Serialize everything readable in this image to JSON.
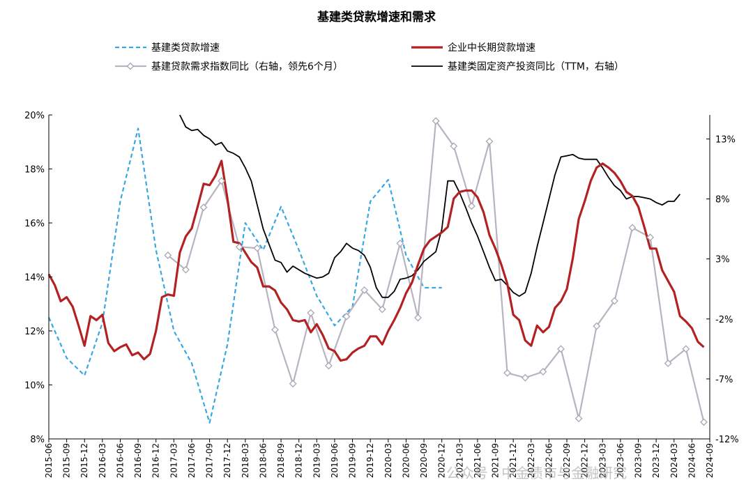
{
  "chart_data": {
    "type": "line",
    "title": "基建类贷款增速和需求",
    "watermark": "公众号 · 中金债市与金融研究",
    "left_axis": {
      "min": 8,
      "max": 20,
      "ticks": [
        "20%",
        "18%",
        "16%",
        "14%",
        "12%",
        "10%",
        "8%"
      ],
      "tick_values": [
        20,
        18,
        16,
        14,
        12,
        10,
        8
      ]
    },
    "right_axis": {
      "min": -12,
      "max": 15,
      "ticks": [
        "13%",
        "8%",
        "3%",
        "-2%",
        "-7%",
        "-12%"
      ],
      "tick_values": [
        13,
        8,
        3,
        -2,
        -7,
        -12
      ]
    },
    "x_labels": [
      "2015-06",
      "2015-09",
      "2015-12",
      "2016-03",
      "2016-06",
      "2016-09",
      "2016-12",
      "2017-03",
      "2017-06",
      "2017-09",
      "2017-12",
      "2018-03",
      "2018-06",
      "2018-09",
      "2018-12",
      "2019-03",
      "2019-06",
      "2019-09",
      "2019-12",
      "2020-03",
      "2020-06",
      "2020-09",
      "2020-12",
      "2021-03",
      "2021-06",
      "2021-09",
      "2021-12",
      "2022-03",
      "2022-06",
      "2022-09",
      "2022-12",
      "2023-03",
      "2023-06",
      "2023-09",
      "2023-12",
      "2024-03",
      "2024-06",
      "2024-09"
    ],
    "legend": {
      "placement": "top",
      "columns": 2
    },
    "series": [
      {
        "name": "基建类贷款增速",
        "axis": "left",
        "style": "dashed",
        "color": "#39a7e0",
        "width": 2.2,
        "marker": "none",
        "points": [
          [
            0,
            12.5
          ],
          [
            3,
            11.0
          ],
          [
            6,
            10.35
          ],
          [
            9,
            12.3
          ],
          [
            12,
            16.8
          ],
          [
            15,
            19.5
          ],
          [
            18,
            15.0
          ],
          [
            21,
            12.0
          ],
          [
            24,
            10.8
          ],
          [
            27,
            8.6
          ],
          [
            30,
            11.5
          ],
          [
            33,
            16.0
          ],
          [
            36,
            15.0
          ],
          [
            39,
            16.6
          ],
          [
            42,
            15.0
          ],
          [
            45,
            13.3
          ],
          [
            48,
            12.2
          ],
          [
            51,
            12.9
          ],
          [
            54,
            16.8
          ],
          [
            57,
            17.6
          ],
          [
            60,
            14.8
          ],
          [
            63,
            13.6
          ],
          [
            66,
            13.6
          ]
        ]
      },
      {
        "name": "企业中长期贷款增速",
        "axis": "left",
        "style": "solid",
        "color": "#b22222",
        "width": 3.2,
        "marker": "none",
        "points": [
          [
            0,
            14.1
          ],
          [
            1,
            13.7
          ],
          [
            2,
            13.1
          ],
          [
            3,
            13.25
          ],
          [
            4,
            12.9
          ],
          [
            5,
            12.2
          ],
          [
            6,
            11.45
          ],
          [
            7,
            12.55
          ],
          [
            8,
            12.4
          ],
          [
            9,
            12.6
          ],
          [
            10,
            11.55
          ],
          [
            11,
            11.25
          ],
          [
            12,
            11.4
          ],
          [
            13,
            11.5
          ],
          [
            14,
            11.1
          ],
          [
            15,
            11.2
          ],
          [
            16,
            10.95
          ],
          [
            17,
            11.15
          ],
          [
            18,
            12.0
          ],
          [
            19,
            13.25
          ],
          [
            20,
            13.35
          ],
          [
            21,
            13.3
          ],
          [
            22,
            14.9
          ],
          [
            23,
            15.5
          ],
          [
            24,
            15.8
          ],
          [
            25,
            16.6
          ],
          [
            26,
            17.45
          ],
          [
            27,
            17.4
          ],
          [
            28,
            17.75
          ],
          [
            29,
            18.3
          ],
          [
            30,
            16.9
          ],
          [
            31,
            15.3
          ],
          [
            32,
            15.25
          ],
          [
            33,
            14.9
          ],
          [
            34,
            14.55
          ],
          [
            35,
            14.35
          ],
          [
            36,
            13.65
          ],
          [
            37,
            13.65
          ],
          [
            38,
            13.5
          ],
          [
            39,
            13.05
          ],
          [
            40,
            12.8
          ],
          [
            41,
            12.4
          ],
          [
            42,
            12.35
          ],
          [
            43,
            12.4
          ],
          [
            44,
            11.95
          ],
          [
            45,
            12.25
          ],
          [
            46,
            11.85
          ],
          [
            47,
            11.35
          ],
          [
            48,
            11.25
          ],
          [
            49,
            10.9
          ],
          [
            50,
            10.95
          ],
          [
            51,
            11.2
          ],
          [
            52,
            11.35
          ],
          [
            53,
            11.45
          ],
          [
            54,
            11.8
          ],
          [
            55,
            11.8
          ],
          [
            56,
            11.5
          ],
          [
            57,
            12.0
          ],
          [
            58,
            12.4
          ],
          [
            59,
            12.85
          ],
          [
            60,
            13.4
          ],
          [
            61,
            13.8
          ],
          [
            62,
            14.45
          ],
          [
            63,
            15.05
          ],
          [
            64,
            15.35
          ],
          [
            65,
            15.5
          ],
          [
            66,
            15.65
          ],
          [
            67,
            15.85
          ],
          [
            68,
            16.9
          ],
          [
            69,
            17.15
          ],
          [
            70,
            17.2
          ],
          [
            71,
            17.2
          ],
          [
            72,
            16.95
          ],
          [
            73,
            16.4
          ],
          [
            74,
            15.55
          ],
          [
            75,
            15.05
          ],
          [
            76,
            14.45
          ],
          [
            77,
            13.75
          ],
          [
            78,
            12.6
          ],
          [
            79,
            12.4
          ],
          [
            80,
            11.65
          ],
          [
            81,
            11.45
          ],
          [
            82,
            12.2
          ],
          [
            83,
            11.95
          ],
          [
            84,
            12.15
          ],
          [
            85,
            12.85
          ],
          [
            86,
            13.1
          ],
          [
            87,
            13.55
          ],
          [
            88,
            14.7
          ],
          [
            89,
            16.15
          ],
          [
            90,
            16.8
          ],
          [
            91,
            17.55
          ],
          [
            92,
            18.05
          ],
          [
            93,
            18.2
          ],
          [
            94,
            18.05
          ],
          [
            95,
            17.85
          ],
          [
            96,
            17.55
          ],
          [
            97,
            17.15
          ],
          [
            98,
            17.0
          ],
          [
            99,
            16.6
          ],
          [
            100,
            15.85
          ],
          [
            101,
            15.05
          ],
          [
            102,
            15.05
          ],
          [
            103,
            14.25
          ],
          [
            104,
            13.85
          ],
          [
            105,
            13.45
          ],
          [
            106,
            12.55
          ],
          [
            107,
            12.35
          ],
          [
            108,
            12.1
          ],
          [
            109,
            11.6
          ],
          [
            110,
            11.4
          ]
        ]
      },
      {
        "name": "基建贷款需求指数同比（右轴，领先6个月）",
        "axis": "right",
        "style": "solid",
        "color": "#b7b3c0",
        "width": 2.2,
        "marker": "diamond",
        "points": [
          [
            20,
            3.3
          ],
          [
            23,
            2.1
          ],
          [
            26,
            7.3
          ],
          [
            29,
            9.5
          ],
          [
            32,
            4.0
          ],
          [
            35,
            3.9
          ],
          [
            38,
            -2.9
          ],
          [
            41,
            -7.4
          ],
          [
            44,
            -1.5
          ],
          [
            47,
            -5.9
          ],
          [
            50,
            -1.8
          ],
          [
            53,
            0.4
          ],
          [
            56,
            -1.2
          ],
          [
            59,
            4.3
          ],
          [
            62,
            -1.9
          ],
          [
            65,
            14.5
          ],
          [
            68,
            12.4
          ],
          [
            71,
            7.4
          ],
          [
            74,
            12.8
          ],
          [
            77,
            -6.5
          ],
          [
            80,
            -6.9
          ],
          [
            83,
            -6.4
          ],
          [
            86,
            -4.5
          ],
          [
            89,
            -10.3
          ],
          [
            92,
            -2.6
          ],
          [
            95,
            -0.5
          ],
          [
            98,
            5.6
          ],
          [
            101,
            4.8
          ],
          [
            104,
            -5.7
          ],
          [
            107,
            -4.5
          ],
          [
            110,
            -10.6
          ]
        ]
      },
      {
        "name": "基建类固定资产投资同比（TTM，右轴）",
        "axis": "right",
        "style": "solid",
        "color": "#000000",
        "width": 1.8,
        "marker": "none",
        "points": [
          [
            22,
            15.0
          ],
          [
            23,
            14.0
          ],
          [
            24,
            13.7
          ],
          [
            25,
            13.8
          ],
          [
            26,
            13.3
          ],
          [
            27,
            13.0
          ],
          [
            28,
            12.5
          ],
          [
            29,
            12.7
          ],
          [
            30,
            12.0
          ],
          [
            31,
            11.8
          ],
          [
            32,
            11.5
          ],
          [
            33,
            10.6
          ],
          [
            34,
            9.5
          ],
          [
            35,
            7.5
          ],
          [
            36,
            5.5
          ],
          [
            37,
            4.2
          ],
          [
            38,
            2.9
          ],
          [
            39,
            2.7
          ],
          [
            40,
            1.9
          ],
          [
            41,
            2.4
          ],
          [
            42,
            2.1
          ],
          [
            43,
            1.8
          ],
          [
            44,
            1.6
          ],
          [
            45,
            1.4
          ],
          [
            46,
            1.5
          ],
          [
            47,
            1.8
          ],
          [
            48,
            3.1
          ],
          [
            49,
            3.6
          ],
          [
            50,
            4.3
          ],
          [
            51,
            3.9
          ],
          [
            52,
            3.7
          ],
          [
            53,
            3.3
          ],
          [
            54,
            2.3
          ],
          [
            55,
            0.6
          ],
          [
            56,
            -0.2
          ],
          [
            57,
            -0.2
          ],
          [
            58,
            0.3
          ],
          [
            59,
            1.3
          ],
          [
            60,
            1.4
          ],
          [
            61,
            1.6
          ],
          [
            62,
            2.1
          ],
          [
            63,
            2.8
          ],
          [
            64,
            3.2
          ],
          [
            65,
            3.6
          ],
          [
            66,
            5.5
          ],
          [
            67,
            9.5
          ],
          [
            68,
            9.5
          ],
          [
            69,
            8.5
          ],
          [
            70,
            7.3
          ],
          [
            71,
            6.0
          ],
          [
            72,
            4.9
          ],
          [
            73,
            3.6
          ],
          [
            74,
            2.3
          ],
          [
            75,
            1.2
          ],
          [
            76,
            1.3
          ],
          [
            77,
            0.8
          ],
          [
            78,
            0.2
          ],
          [
            79,
            -0.1
          ],
          [
            80,
            0.2
          ],
          [
            81,
            1.8
          ],
          [
            82,
            4.0
          ],
          [
            83,
            6.0
          ],
          [
            84,
            8.0
          ],
          [
            85,
            10.0
          ],
          [
            86,
            11.5
          ],
          [
            87,
            11.6
          ],
          [
            88,
            11.7
          ],
          [
            89,
            11.4
          ],
          [
            90,
            11.3
          ],
          [
            91,
            11.3
          ],
          [
            92,
            11.3
          ],
          [
            93,
            10.6
          ],
          [
            94,
            9.8
          ],
          [
            95,
            9.1
          ],
          [
            96,
            8.7
          ],
          [
            97,
            8.0
          ],
          [
            98,
            8.2
          ],
          [
            99,
            8.2
          ],
          [
            100,
            8.1
          ],
          [
            101,
            8.0
          ],
          [
            102,
            7.7
          ],
          [
            103,
            7.5
          ],
          [
            104,
            7.8
          ],
          [
            105,
            7.8
          ],
          [
            106,
            8.4
          ]
        ]
      }
    ]
  }
}
